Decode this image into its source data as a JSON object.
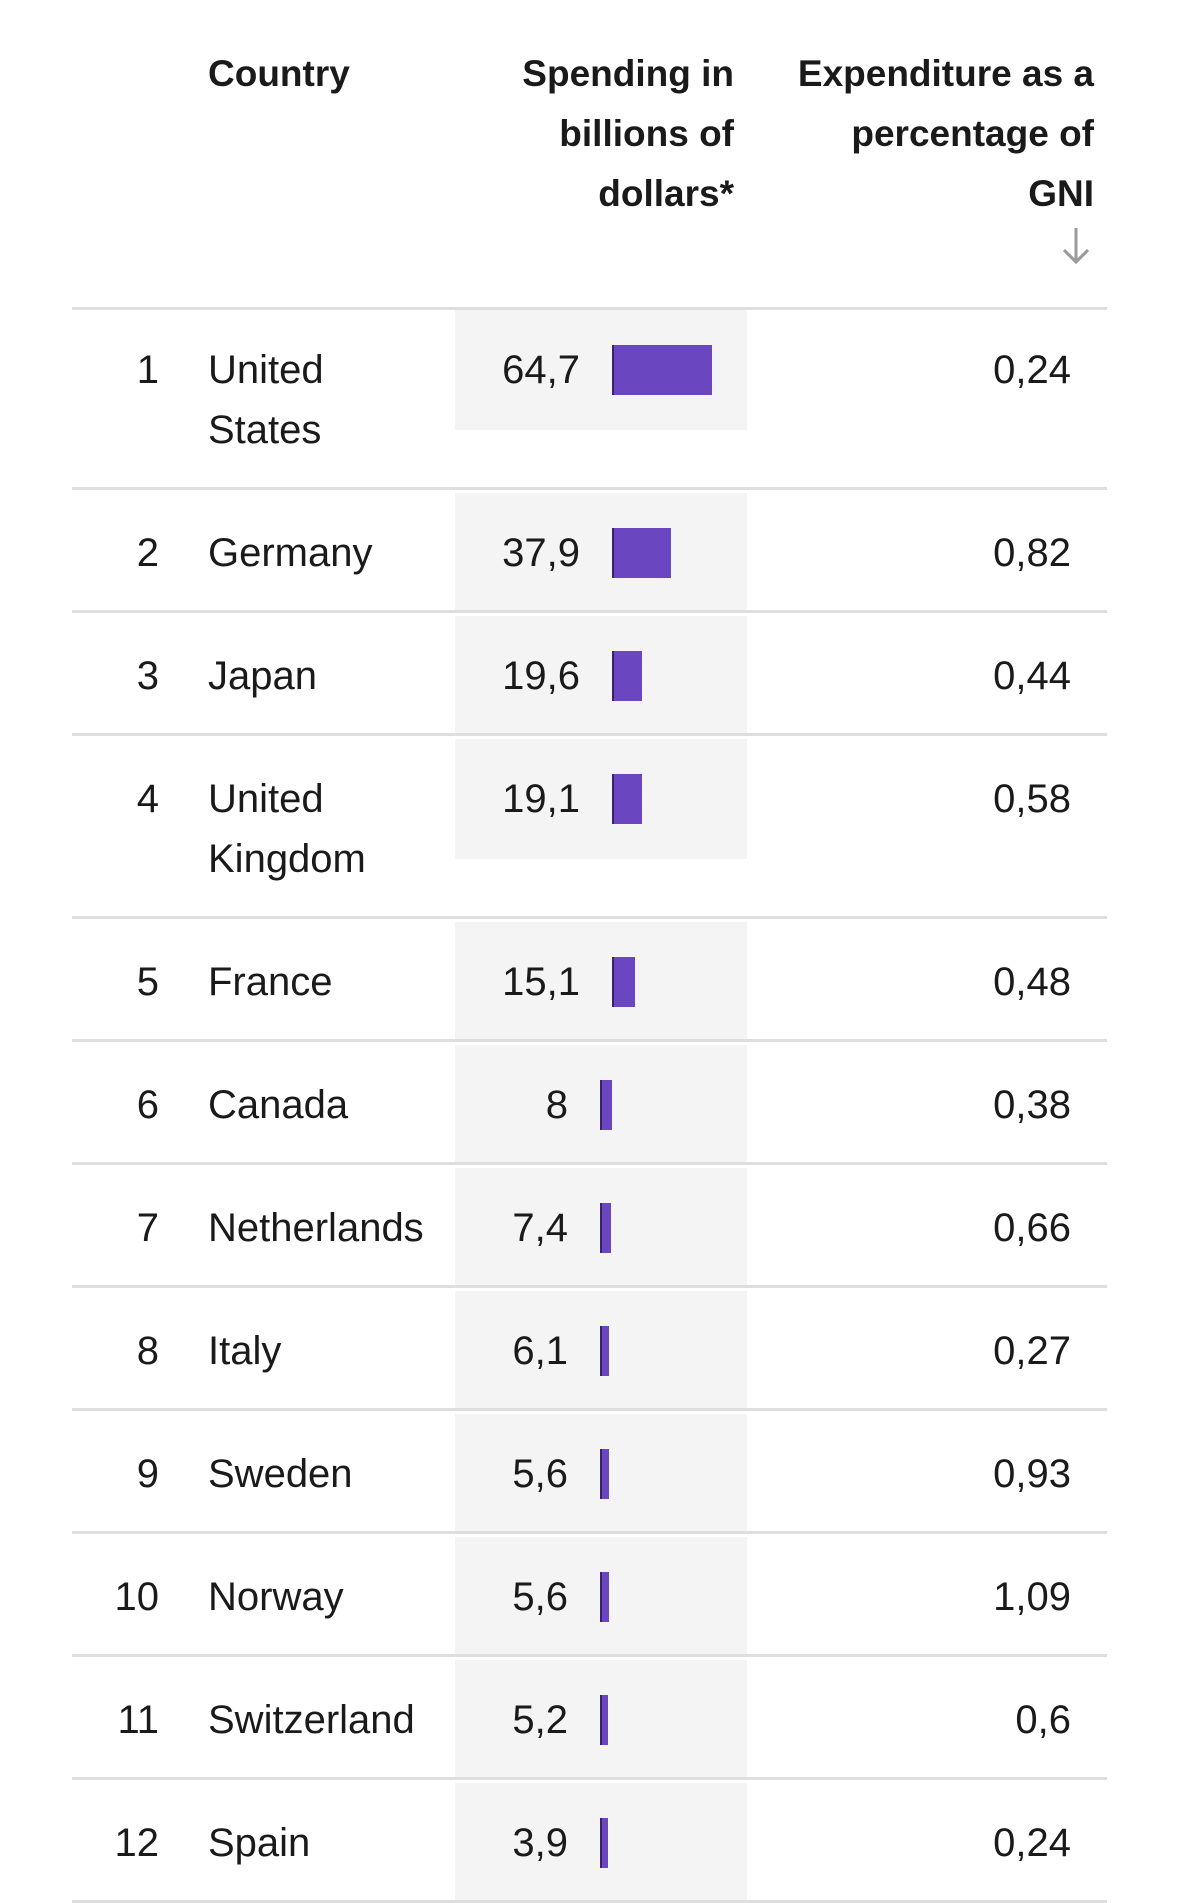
{
  "chart_data": {
    "type": "table",
    "columns": [
      "",
      "Country",
      "Spending in billions of dollars*",
      "Expenditure as a percentage of GNI"
    ],
    "sorted_by": "Expenditure as a percentage of GNI",
    "rows": [
      {
        "rank": "1",
        "country": "United States",
        "spending": 64.7,
        "spending_label": "64,7",
        "gni": "0,24"
      },
      {
        "rank": "2",
        "country": "Germany",
        "spending": 37.9,
        "spending_label": "37,9",
        "gni": "0,82"
      },
      {
        "rank": "3",
        "country": "Japan",
        "spending": 19.6,
        "spending_label": "19,6",
        "gni": "0,44"
      },
      {
        "rank": "4",
        "country": "United Kingdom",
        "spending": 19.1,
        "spending_label": "19,1",
        "gni": "0,58"
      },
      {
        "rank": "5",
        "country": "France",
        "spending": 15.1,
        "spending_label": "15,1",
        "gni": "0,48"
      },
      {
        "rank": "6",
        "country": "Canada",
        "spending": 8,
        "spending_label": "8",
        "gni": "0,38"
      },
      {
        "rank": "7",
        "country": "Netherlands",
        "spending": 7.4,
        "spending_label": "7,4",
        "gni": "0,66"
      },
      {
        "rank": "8",
        "country": "Italy",
        "spending": 6.1,
        "spending_label": "6,1",
        "gni": "0,27"
      },
      {
        "rank": "9",
        "country": "Sweden",
        "spending": 5.6,
        "spending_label": "5,6",
        "gni": "0,93"
      },
      {
        "rank": "10",
        "country": "Norway",
        "spending": 5.6,
        "spending_label": "5,6",
        "gni": "1,09"
      },
      {
        "rank": "11",
        "country": "Switzerland",
        "spending": 5.2,
        "spending_label": "5,2",
        "gni": "0,6"
      },
      {
        "rank": "12",
        "country": "Spain",
        "spending": 3.9,
        "spending_label": "3,9",
        "gni": "0,24"
      }
    ],
    "bar_color": "#6b46c1"
  },
  "header": {
    "country": "Country",
    "spending_lines": [
      "Spending in",
      "billions of",
      "dollars*"
    ],
    "gni_lines": [
      "Expenditure as a",
      "percentage of",
      "GNI"
    ],
    "sort_icon": "arrow-down-icon"
  }
}
